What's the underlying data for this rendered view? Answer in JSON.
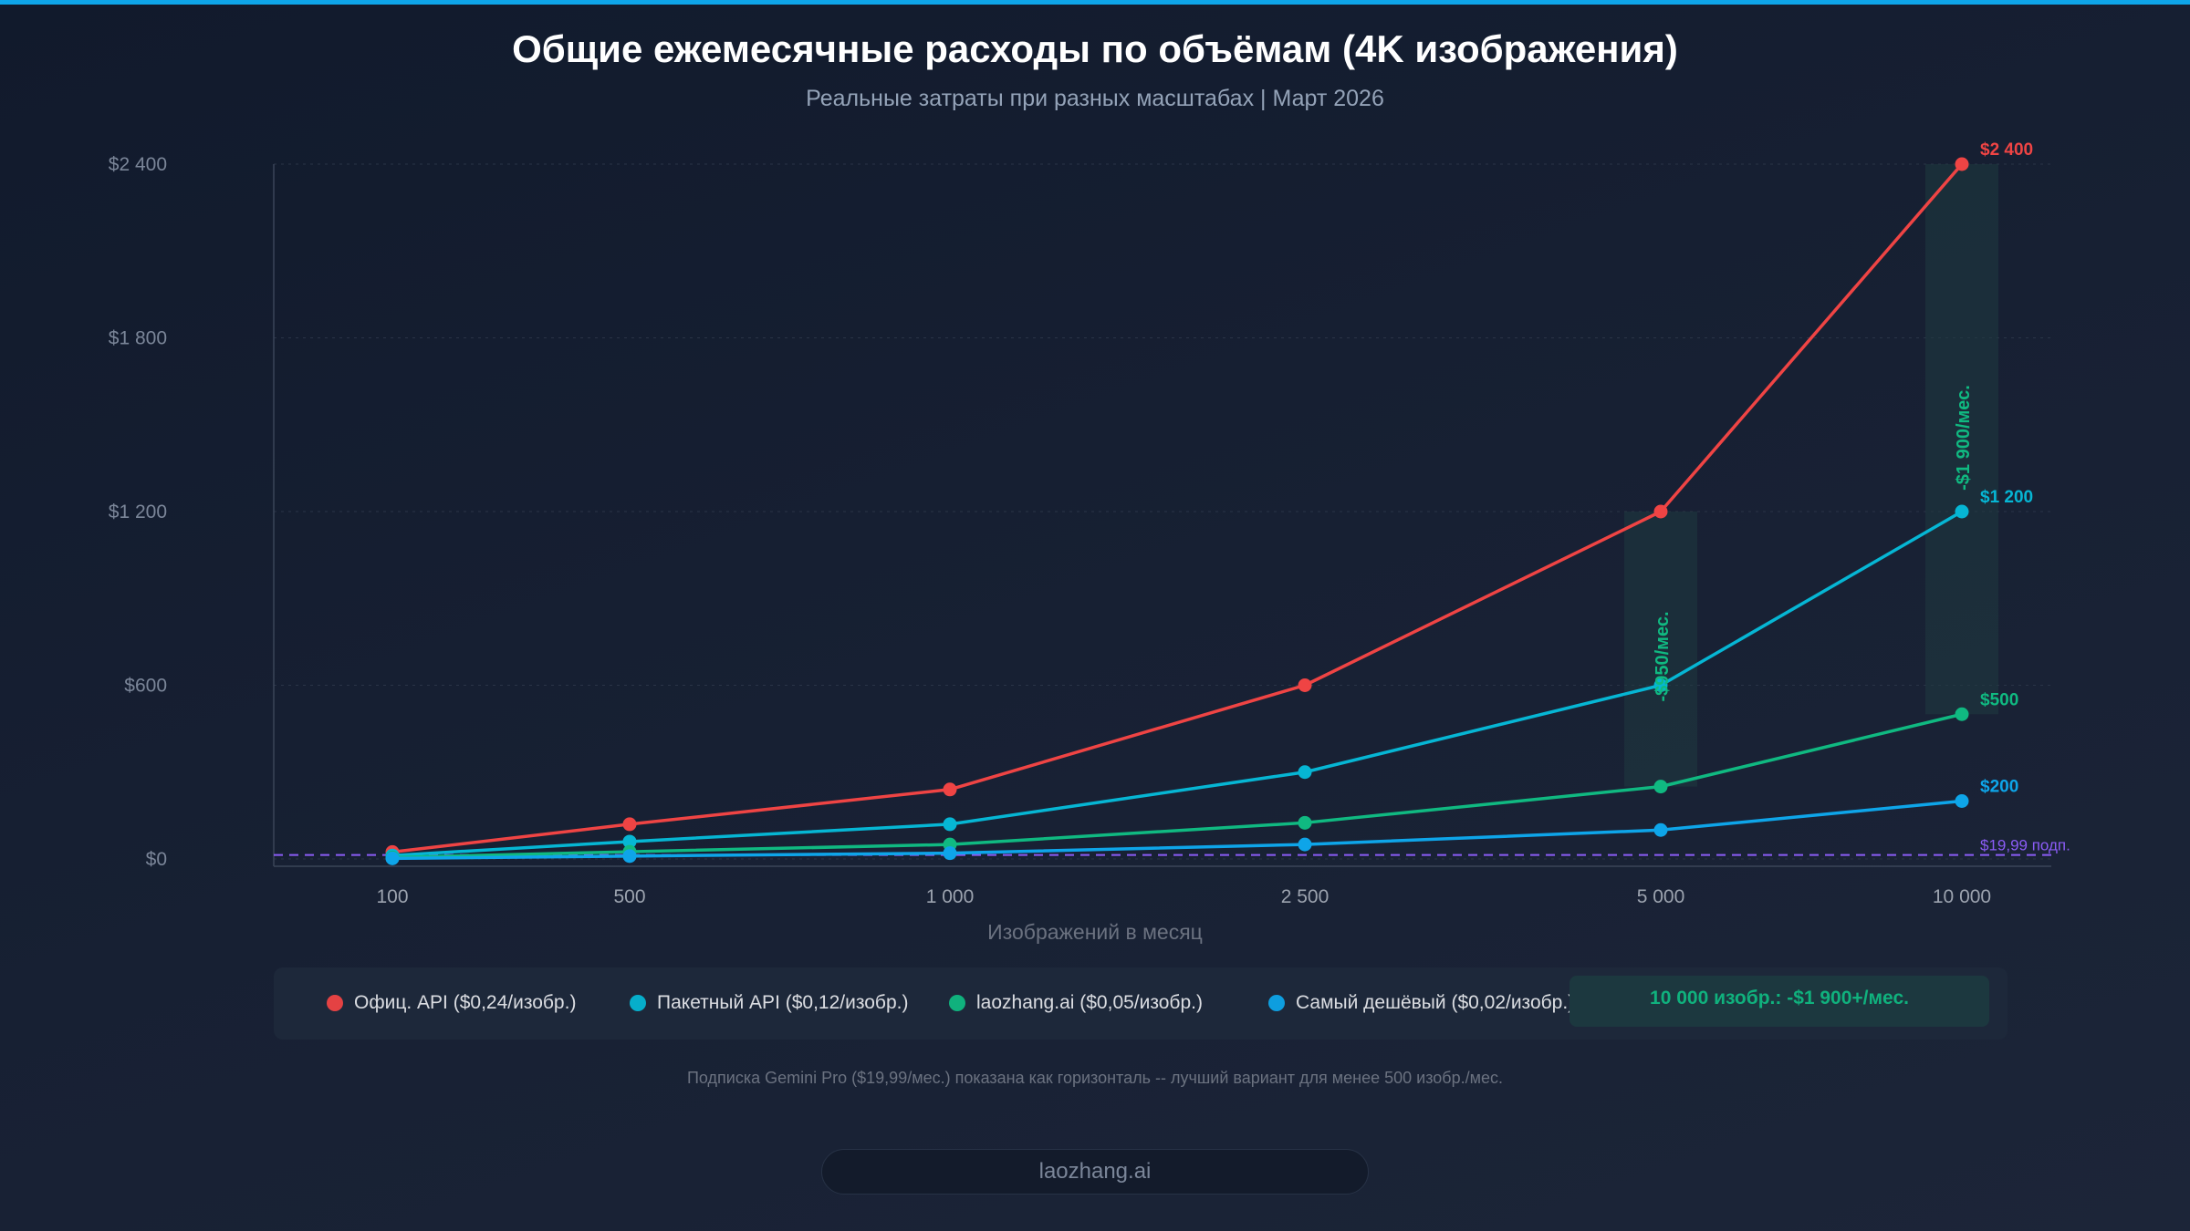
{
  "header": {
    "title": "Общие ежемесячные расходы по объёмам (4K изображения)",
    "subtitle": "Реальные затраты при разных масштабах | Март 2026"
  },
  "chart_data": {
    "type": "line",
    "title": "Общие ежемесячные расходы по объёмам (4K изображения)",
    "subtitle": "Реальные затраты при разных масштабах | Март 2026",
    "xlabel": "Изображений в месяц",
    "ylabel": "",
    "categories": [
      "100",
      "500",
      "1 000",
      "2 500",
      "5 000",
      "10 000"
    ],
    "x": [
      100,
      500,
      1000,
      2500,
      5000,
      10000
    ],
    "ylim": [
      0,
      2400
    ],
    "yticks": [
      0,
      600,
      1200,
      1800,
      2400
    ],
    "ytick_labels": [
      "$0",
      "$600",
      "$1 200",
      "$1 800",
      "$2 400"
    ],
    "grid": true,
    "legend_position": "bottom",
    "series": [
      {
        "name": "Офиц. API ($0,24/изобр.)",
        "color": "#ef4444",
        "values": [
          24,
          120,
          240,
          600,
          1200,
          2400
        ],
        "end_label": "$2 400"
      },
      {
        "name": "Пакетный API ($0,12/изобр.)",
        "color": "#06b6d4",
        "values": [
          12,
          60,
          120,
          300,
          600,
          1200
        ],
        "end_label": "$1 200"
      },
      {
        "name": "laozhang.ai ($0,05/изобр.)",
        "color": "#10b981",
        "values": [
          5,
          25,
          50,
          125,
          250,
          500
        ],
        "end_label": "$500"
      },
      {
        "name": "Самый дешёвый ($0,02/изобр.)",
        "color": "#0ea5e9",
        "values": [
          2,
          10,
          20,
          50,
          100,
          200
        ],
        "end_label": "$200"
      }
    ],
    "reference_line": {
      "value": 19.99,
      "label": "$19,99 подп.",
      "color": "#8b5cf6"
    },
    "annotations": [
      {
        "x": 5000,
        "from": 250,
        "to": 1200,
        "label": "-$950/мес.",
        "color": "#10b981"
      },
      {
        "x": 10000,
        "from": 500,
        "to": 2400,
        "label": "-$1 900/мес.",
        "color": "#10b981"
      }
    ]
  },
  "legend": {
    "savings": "10 000 изобр.: -$1 900+/мес."
  },
  "footnote": "Подписка Gemini Pro ($19,99/мес.) показана как горизонталь -- лучший вариант для менее 500 изобр./мес.",
  "brand": "laozhang.ai"
}
